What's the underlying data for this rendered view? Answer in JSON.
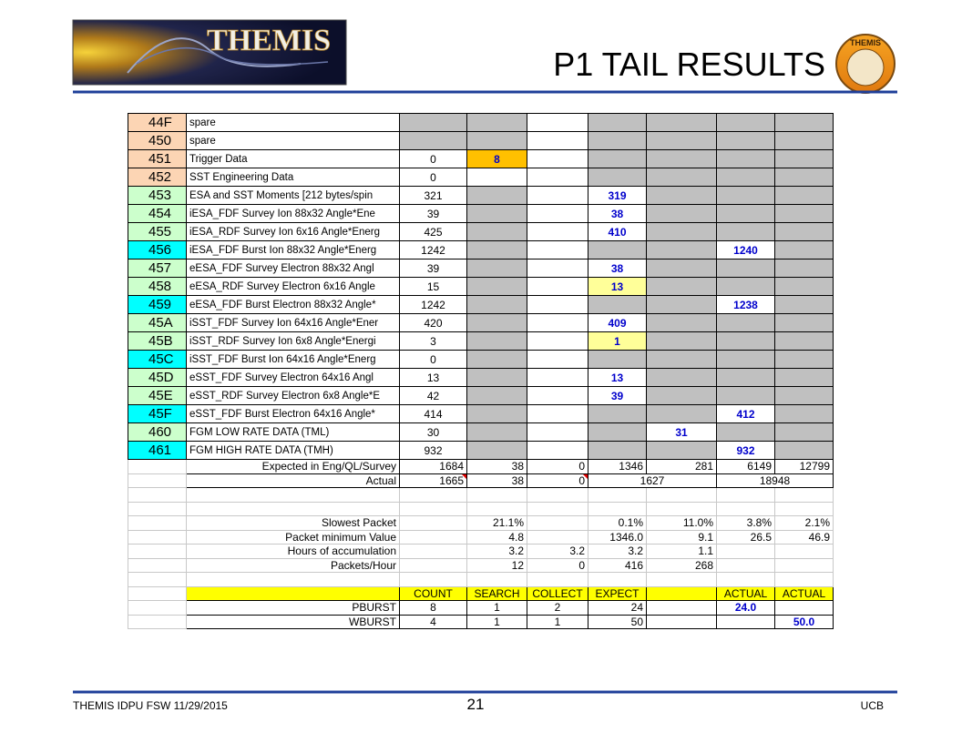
{
  "header": {
    "logo_text": "THEMIS",
    "title": "P1 TAIL RESULTS",
    "seal_text": "THEMIS"
  },
  "table": {
    "rows": [
      [
        "44F",
        "spare",
        null,
        null,
        null,
        null,
        null,
        null,
        null
      ],
      [
        "450",
        "spare",
        null,
        null,
        null,
        null,
        null,
        null,
        null
      ],
      [
        "451",
        "Trigger Data",
        "0",
        "8",
        null,
        null,
        null,
        null,
        null
      ],
      [
        "452",
        "SST Engineering Data",
        "0",
        null,
        null,
        null,
        null,
        null,
        null
      ],
      [
        "453",
        "ESA and SST Moments [212 bytes/spin",
        "321",
        null,
        null,
        "319",
        null,
        null,
        null
      ],
      [
        "454",
        "iESA_FDF Survey Ion 88x32 Angle*Ene",
        "39",
        null,
        null,
        "38",
        null,
        null,
        null
      ],
      [
        "455",
        "iESA_RDF Survey Ion 6x16 Angle*Energ",
        "425",
        null,
        null,
        "410",
        null,
        null,
        null
      ],
      [
        "456",
        "iESA_FDF Burst Ion 88x32 Angle*Energ",
        "1242",
        null,
        null,
        null,
        null,
        "1240",
        null
      ],
      [
        "457",
        "eESA_FDF Survey Electron 88x32 Angl",
        "39",
        null,
        null,
        "38",
        null,
        null,
        null
      ],
      [
        "458",
        "eESA_RDF Survey Electron 6x16 Angle",
        "15",
        null,
        null,
        "13",
        null,
        null,
        null
      ],
      [
        "459",
        "eESA_FDF Burst Electron 88x32 Angle*",
        "1242",
        null,
        null,
        null,
        null,
        "1238",
        null
      ],
      [
        "45A",
        "iSST_FDF Survey Ion 64x16 Angle*Ener",
        "420",
        null,
        null,
        "409",
        null,
        null,
        null
      ],
      [
        "45B",
        "iSST_RDF Survey Ion 6x8 Angle*Energi",
        "3",
        null,
        null,
        "1",
        null,
        null,
        null
      ],
      [
        "45C",
        "iSST_FDF Burst Ion 64x16 Angle*Energ",
        "0",
        null,
        null,
        null,
        null,
        null,
        null
      ],
      [
        "45D",
        "eSST_FDF Survey Electron 64x16 Angl",
        "13",
        null,
        null,
        "13",
        null,
        null,
        null
      ],
      [
        "45E",
        "eSST_RDF Survey Electron 6x8 Angle*E",
        "42",
        null,
        null,
        "39",
        null,
        null,
        null
      ],
      [
        "45F",
        "eSST_FDF Burst Electron 64x16 Angle*",
        "414",
        null,
        null,
        null,
        null,
        "412",
        null
      ],
      [
        "460",
        "FGM LOW RATE DATA (TML)",
        "30",
        null,
        null,
        null,
        "31",
        null,
        null
      ],
      [
        "461",
        "FGM HIGH RATE DATA (TMH)",
        "932",
        null,
        null,
        null,
        null,
        "932",
        null
      ],
      [
        null,
        "Expected in Eng/QL/Survey",
        "1684",
        "38",
        "0",
        "1346",
        "281",
        "6149",
        "12799"
      ],
      [
        null,
        "Actual",
        "1665",
        "38",
        "0",
        "1627",
        null,
        "18948",
        null
      ],
      [
        null,
        null,
        null,
        null,
        null,
        null,
        null,
        null,
        null
      ],
      [
        null,
        null,
        null,
        null,
        null,
        null,
        null,
        null,
        null
      ],
      [
        null,
        "Slowest Packet",
        null,
        "21.1%",
        null,
        "0.1%",
        "11.0%",
        "3.8%",
        "2.1%"
      ],
      [
        null,
        "Packet minimum Value",
        null,
        "4.8",
        null,
        "1346.0",
        "9.1",
        "26.5",
        "46.9"
      ],
      [
        null,
        "Hours of accumulation",
        null,
        "3.2",
        "3.2",
        "3.2",
        "1.1",
        null,
        null
      ],
      [
        null,
        "Packets/Hour",
        null,
        "12",
        "0",
        "416",
        "268",
        null,
        null
      ],
      [
        null,
        null,
        null,
        null,
        null,
        null,
        null,
        null,
        null
      ],
      [
        null,
        null,
        "COUNT",
        "SEARCH",
        "COLLECT",
        "EXPECT",
        null,
        "ACTUAL",
        "ACTUAL"
      ],
      [
        null,
        "PBURST",
        "8",
        "1",
        "2",
        "24",
        null,
        "24.0",
        null
      ],
      [
        null,
        "WBURST",
        "4",
        "1",
        "1",
        "50",
        null,
        null,
        "50.0"
      ]
    ]
  },
  "footer": {
    "left": "THEMIS IDPU FSW 11/29/2015",
    "page": "21",
    "right": "UCB"
  }
}
